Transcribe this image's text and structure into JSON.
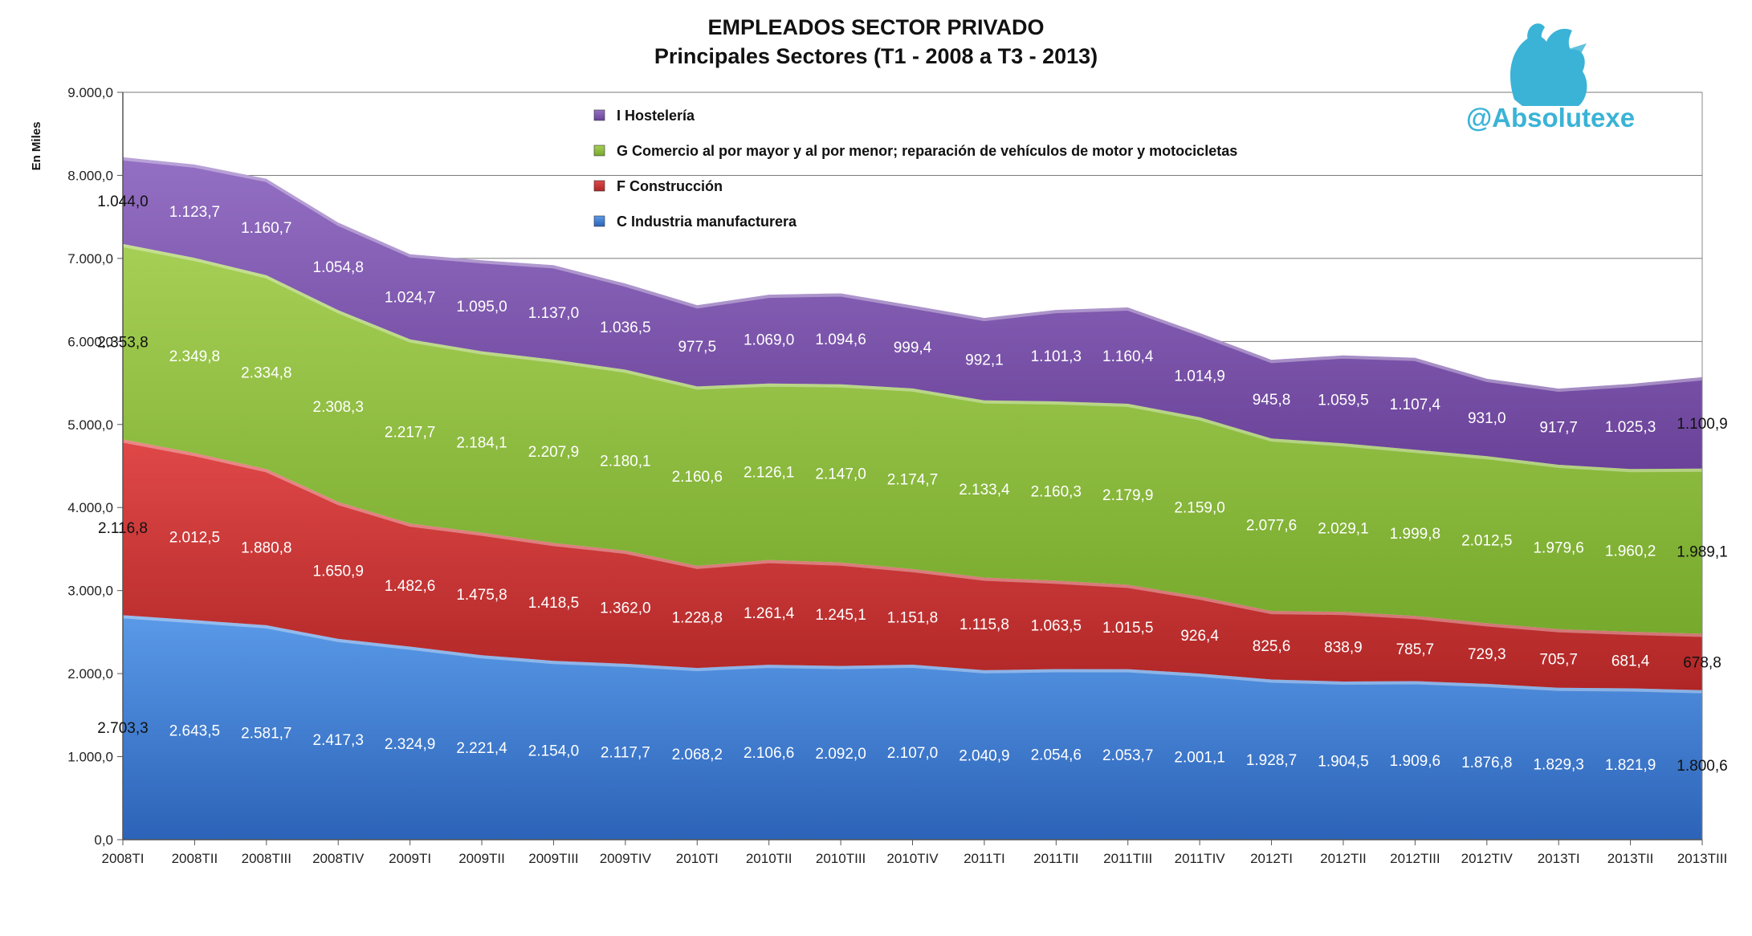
{
  "chart_data": {
    "type": "area",
    "stacked": true,
    "title": "EMPLEADOS SECTOR PRIVADO",
    "subtitle": "Principales Sectores (T1 - 2008 a T3 - 2013)",
    "ylabel": "En Miles",
    "xlabel": "",
    "ylim": [
      0,
      9000
    ],
    "yticks": [
      "0,0",
      "1.000,0",
      "2.000,0",
      "3.000,0",
      "4.000,0",
      "5.000,0",
      "6.000,0",
      "7.000,0",
      "8.000,0",
      "9.000,0"
    ],
    "grid": true,
    "legend_position": "top-center",
    "categories": [
      "2008TI",
      "2008TII",
      "2008TIII",
      "2008TIV",
      "2009TI",
      "2009TII",
      "2009TIII",
      "2009TIV",
      "2010TI",
      "2010TII",
      "2010TIII",
      "2010TIV",
      "2011TI",
      "2011TII",
      "2011TIII",
      "2011TIV",
      "2012TI",
      "2012TII",
      "2012TIII",
      "2012TIV",
      "2013TI",
      "2013TII",
      "2013TIII"
    ],
    "series": [
      {
        "name": "C  Industria manufacturera",
        "color": "#3f7fd6",
        "values": [
          2703.3,
          2643.5,
          2581.7,
          2417.3,
          2324.9,
          2221.4,
          2154.0,
          2117.7,
          2068.2,
          2106.6,
          2092.0,
          2107.0,
          2040.9,
          2054.6,
          2053.7,
          2001.1,
          1928.7,
          1904.5,
          1909.6,
          1876.8,
          1829.3,
          1821.9,
          1800.6
        ],
        "labels": [
          "2.703,3",
          "2.643,5",
          "2.581,7",
          "2.417,3",
          "2.324,9",
          "2.221,4",
          "2.154,0",
          "2.117,7",
          "2.068,2",
          "2.106,6",
          "2.092,0",
          "2.107,0",
          "2.040,9",
          "2.054,6",
          "2.053,7",
          "2.001,1",
          "1.928,7",
          "1.904,5",
          "1.909,6",
          "1.876,8",
          "1.829,3",
          "1.821,9",
          "1.800,6"
        ]
      },
      {
        "name": "F  Construcción",
        "color": "#cf3535",
        "values": [
          2116.8,
          2012.5,
          1880.8,
          1650.9,
          1482.6,
          1475.8,
          1418.5,
          1362.0,
          1228.8,
          1261.4,
          1245.1,
          1151.8,
          1115.8,
          1063.5,
          1015.5,
          926.4,
          825.6,
          838.9,
          785.7,
          729.3,
          705.7,
          681.4,
          678.8
        ],
        "labels": [
          "2.116,8",
          "2.012,5",
          "1.880,8",
          "1.650,9",
          "1.482,6",
          "1.475,8",
          "1.418,5",
          "1.362,0",
          "1.228,8",
          "1.261,4",
          "1.245,1",
          "1.151,8",
          "1.115,8",
          "1.063,5",
          "1.015,5",
          "926,4",
          "825,6",
          "838,9",
          "785,7",
          "729,3",
          "705,7",
          "681,4",
          "678,8"
        ]
      },
      {
        "name": "G  Comercio al por mayor y al por menor; reparación de vehículos de motor y motocicletas",
        "color": "#8fbf3f",
        "values": [
          2353.8,
          2349.8,
          2334.8,
          2308.3,
          2217.7,
          2184.1,
          2207.9,
          2180.1,
          2160.6,
          2126.1,
          2147.0,
          2174.7,
          2133.4,
          2160.3,
          2179.9,
          2159.0,
          2077.6,
          2029.1,
          1999.8,
          2012.5,
          1979.6,
          1960.2,
          1989.1
        ],
        "labels": [
          "2.353,8",
          "2.349,8",
          "2.334,8",
          "2.308,3",
          "2.217,7",
          "2.184,1",
          "2.207,9",
          "2.180,1",
          "2.160,6",
          "2.126,1",
          "2.147,0",
          "2.174,7",
          "2.133,4",
          "2.160,3",
          "2.179,9",
          "2.159,0",
          "2.077,6",
          "2.029,1",
          "1.999,8",
          "2.012,5",
          "1.979,6",
          "1.960,2",
          "1.989,1"
        ]
      },
      {
        "name": "I  Hostelería",
        "color": "#7b52ad",
        "values": [
          1044.0,
          1123.7,
          1160.7,
          1054.8,
          1024.7,
          1095.0,
          1137.0,
          1036.5,
          977.5,
          1069.0,
          1094.6,
          999.4,
          992.1,
          1101.3,
          1160.4,
          1014.9,
          945.8,
          1059.5,
          1107.4,
          931.0,
          917.7,
          1025.3,
          1100.9
        ],
        "labels": [
          "1.044,0",
          "1.123,7",
          "1.160,7",
          "1.054,8",
          "1.024,7",
          "1.095,0",
          "1.137,0",
          "1.036,5",
          "977,5",
          "1.069,0",
          "1.094,6",
          "999,4",
          "992,1",
          "1.101,3",
          "1.160,4",
          "1.014,9",
          "945,8",
          "1.059,5",
          "1.107,4",
          "931,0",
          "917,7",
          "1.025,3",
          "1.100,9"
        ]
      }
    ],
    "legend_order": [
      3,
      2,
      1,
      0
    ]
  },
  "brand": {
    "handle": "@Absolutexe",
    "logo": "griffin-logo",
    "color": "#3ab3d6"
  }
}
